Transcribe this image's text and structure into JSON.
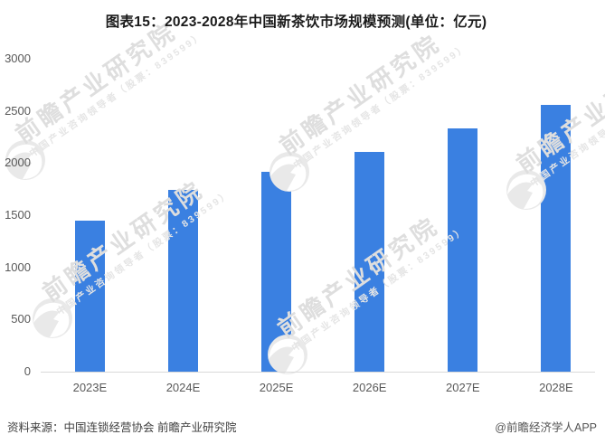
{
  "title": "图表15：2023-2028年中国新茶饮市场规模预测(单位：亿元)",
  "chart_data": {
    "type": "bar",
    "title": "图表15：2023-2028年中国新茶饮市场规模预测",
    "unit": "亿元",
    "categories": [
      "2023E",
      "2024E",
      "2025E",
      "2026E",
      "2027E",
      "2028E"
    ],
    "values": [
      1450,
      1740,
      1920,
      2110,
      2330,
      2560
    ],
    "xlabel": "",
    "ylabel": "",
    "ylim": [
      0,
      3000
    ],
    "yticks": [
      0,
      500,
      1000,
      1500,
      2000,
      2500,
      3000
    ],
    "grid": false,
    "legend_position": "none",
    "bar_color": "#3a80e1"
  },
  "footer": {
    "source": "资料来源：中国连锁经营协会 前瞻产业研究院",
    "credit": "@前瞻经济学人APP"
  },
  "watermark": {
    "text": "前瞻产业研究院",
    "subtext": "中国产业咨询领导者（股票：839599）"
  },
  "colors": {
    "bar": "#3a80e1",
    "axis_line": "#d9d9d9",
    "tick_label": "#595959",
    "title_text": "#1a1a1a",
    "footer_text": "#404040",
    "watermark_main": "#dedede",
    "watermark_sub": "#e5e5e5",
    "watermark_globe": "#e9e9e9"
  }
}
